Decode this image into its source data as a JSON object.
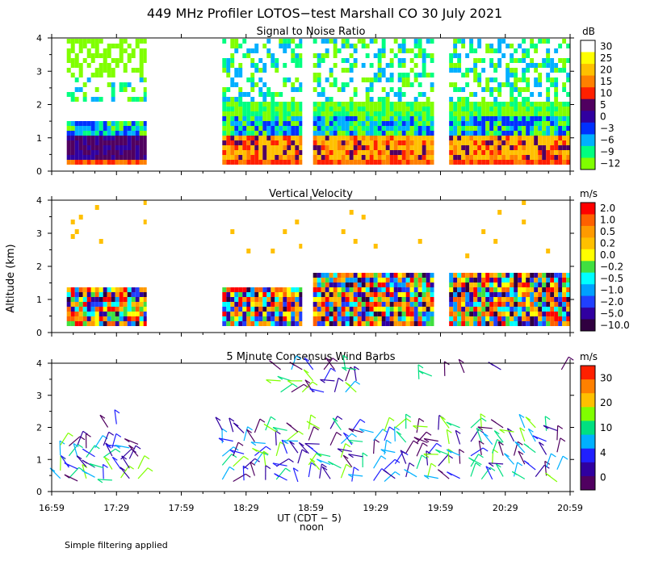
{
  "figure": {
    "title": "449 MHz Profiler LOTOS−test Marshall CO 30 July 2021",
    "y_axis_label": "Altitude (km)",
    "x_axis_label": "UT (CDT − 5)",
    "x_axis_sublabel": "noon",
    "footnote": "Simple filtering applied"
  },
  "chart_data": [
    {
      "type": "heatmap",
      "title": "Signal to Noise Ratio",
      "ylim": [
        0,
        4
      ],
      "yticks": [
        "0",
        "1",
        "2",
        "3",
        "4"
      ],
      "xticks": [
        "16:59",
        "17:29",
        "17:59",
        "18:29",
        "18:59",
        "19:29",
        "19:59",
        "20:29",
        "20:59"
      ],
      "colorbar": {
        "unit": "dB",
        "labels": [
          "30",
          "25",
          "20",
          "15",
          "10",
          "5",
          "0",
          "−3",
          "−6",
          "−9",
          "−12"
        ],
        "colors": [
          "#ffffff",
          "#ffff00",
          "#ffc000",
          "#ff8000",
          "#ff2000",
          "#500060",
          "#3000a0",
          "#0030ff",
          "#00b0ff",
          "#00ff80",
          "#80ff00"
        ]
      },
      "data_segments": [
        {
          "start": "17:06",
          "end": "17:43"
        },
        {
          "start": "18:18",
          "end": "18:55"
        },
        {
          "start": "19:00",
          "end": "19:56"
        },
        {
          "start": "20:03",
          "end": "20:59"
        }
      ]
    },
    {
      "type": "heatmap",
      "title": "Vertical Velocity",
      "ylim": [
        0,
        4
      ],
      "yticks": [
        "0",
        "1",
        "2",
        "3",
        "4"
      ],
      "xticks": [
        "16:59",
        "17:29",
        "17:59",
        "18:29",
        "18:59",
        "19:29",
        "19:59",
        "20:29",
        "20:59"
      ],
      "colorbar": {
        "unit": "m/s",
        "labels": [
          "2.0",
          "1.0",
          "0.5",
          "0.2",
          "0.0",
          "−0.2",
          "−0.5",
          "−1.0",
          "−2.0",
          "−5.0",
          "−10.0"
        ],
        "colors": [
          "#ff0000",
          "#ff6000",
          "#ff9a00",
          "#ffc000",
          "#ffff00",
          "#40e040",
          "#00ffff",
          "#00a0ff",
          "#2040ff",
          "#3000a0",
          "#300040"
        ]
      },
      "data_segments": [
        {
          "start": "17:06",
          "end": "17:43"
        },
        {
          "start": "18:18",
          "end": "18:55"
        },
        {
          "start": "19:00",
          "end": "19:56"
        },
        {
          "start": "20:03",
          "end": "20:59"
        }
      ]
    },
    {
      "type": "scatter",
      "title": "5 Minute Consensus Wind Barbs",
      "ylim": [
        0,
        4
      ],
      "yticks": [
        "0",
        "1",
        "2",
        "3",
        "4"
      ],
      "xticks": [
        "16:59",
        "17:29",
        "17:59",
        "18:29",
        "18:59",
        "19:29",
        "19:59",
        "20:29",
        "20:59"
      ],
      "colorbar": {
        "unit": "m/s",
        "labels": [
          "30",
          "20",
          "10",
          "4",
          "0"
        ],
        "colors": [
          "#ff2000",
          "#ff8000",
          "#ffc000",
          "#80ff00",
          "#00e080",
          "#00b0ff",
          "#2020ff",
          "#3000a0",
          "#500060"
        ]
      }
    }
  ]
}
